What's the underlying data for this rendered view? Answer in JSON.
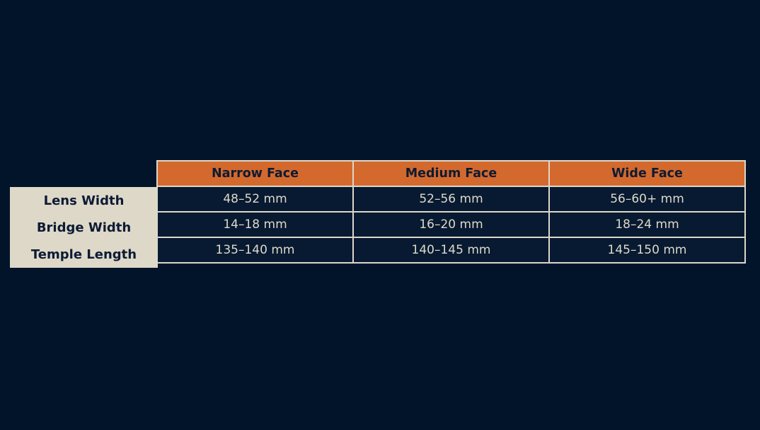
{
  "page": {
    "background_color": "#02142a"
  },
  "table": {
    "columns": [
      "Narrow Face",
      "Medium Face",
      "Wide Face"
    ],
    "rows": [
      {
        "label": "Lens Width",
        "values": [
          "48–52 mm",
          "52–56 mm",
          "56–60+ mm"
        ]
      },
      {
        "label": "Bridge Width",
        "values": [
          "14–18 mm",
          "16–20 mm",
          "18–24 mm"
        ]
      },
      {
        "label": "Temple Length",
        "values": [
          "135–140 mm",
          "140–145 mm",
          "145–150 mm"
        ]
      }
    ],
    "colors": {
      "header_background": "#d4692d",
      "header_text": "#0d1b33",
      "label_background": "#ded8c9",
      "label_text": "#0d1b33",
      "cell_background": "#081a31",
      "cell_text": "#ded9cc",
      "border": "#dcd7ca",
      "page_background": "#02142a"
    }
  },
  "chart_data": {
    "type": "table",
    "title": "",
    "columns": [
      "",
      "Narrow Face",
      "Medium Face",
      "Wide Face"
    ],
    "rows": [
      [
        "Lens Width",
        "48–52 mm",
        "52–56 mm",
        "56–60+ mm"
      ],
      [
        "Bridge Width",
        "14–18 mm",
        "16–20 mm",
        "18–24 mm"
      ],
      [
        "Temple Length",
        "135–140 mm",
        "140–145 mm",
        "145–150 mm"
      ]
    ],
    "layout_hints": {
      "header_fill": "#d4692d",
      "row_label_fill": "#ded8c9",
      "cell_fill": "#081a31",
      "background": "#02142a",
      "grid": true
    }
  }
}
